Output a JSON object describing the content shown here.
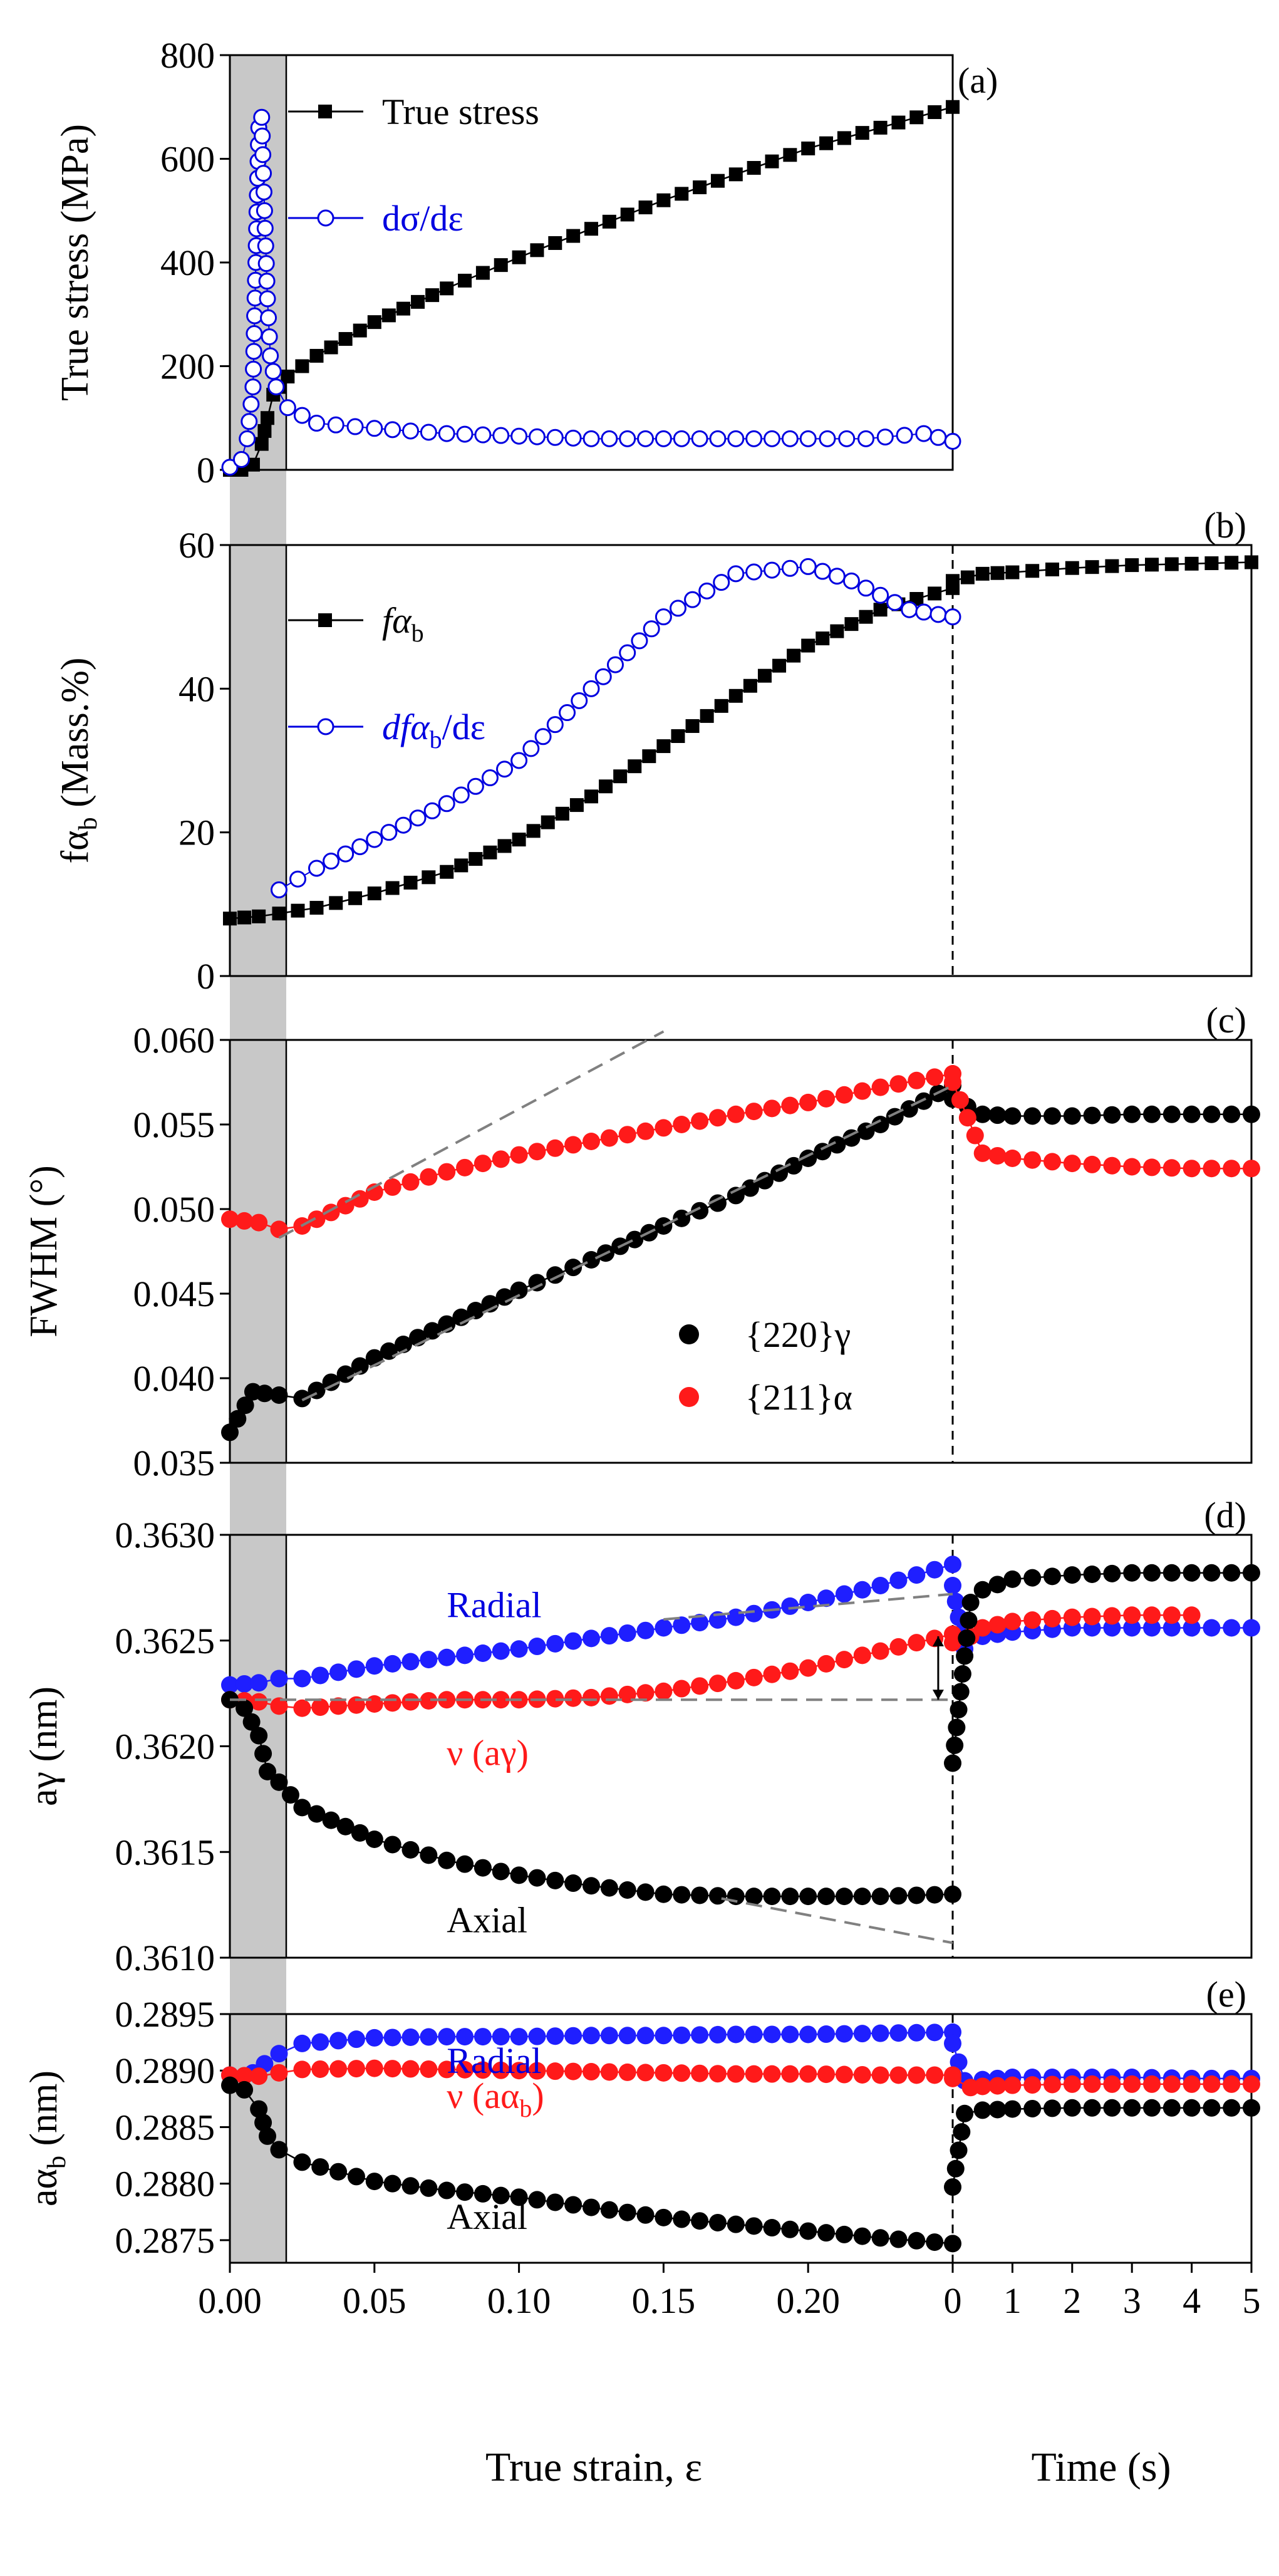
{
  "figure": {
    "x_label": "True strain, ε",
    "time_label": "Time (s)",
    "strain_ticks": [
      "0.00",
      "0.05",
      "0.10",
      "0.15",
      "0.20"
    ],
    "time_ticks": [
      "0",
      "1",
      "2",
      "3",
      "4",
      "5"
    ]
  },
  "colors": {
    "black": "#000000",
    "blue": "#1f1fff",
    "red": "#ff1a1a",
    "dashed": "#808080",
    "shade": "#c8c8c8",
    "hollow_blue": "#0000e0"
  },
  "chart_data": [
    {
      "type": "line",
      "panel_label": "(a)",
      "ylabel": "True stress (MPa)",
      "ylim": [
        0,
        800
      ],
      "yticks": [
        "0",
        "200",
        "400",
        "600",
        "800"
      ],
      "xlim_strain": [
        0,
        0.25
      ],
      "legend": [
        {
          "text": "True stress",
          "marker": "filled-square",
          "color": "#000000"
        },
        {
          "text": "dσ/dε",
          "marker": "open-circle",
          "color": "#0000e0"
        }
      ],
      "series": [
        {
          "name": "True stress",
          "segment": "strain",
          "x": [
            0.0,
            0.004,
            0.008,
            0.011,
            0.013,
            0.015,
            0.017,
            0.02,
            0.03,
            0.05,
            0.075,
            0.1,
            0.125,
            0.15,
            0.175,
            0.2,
            0.225,
            0.25
          ],
          "y": [
            0,
            0,
            10,
            50,
            100,
            145,
            160,
            180,
            220,
            285,
            350,
            410,
            465,
            520,
            570,
            620,
            660,
            700
          ]
        },
        {
          "name": "dσ/dε",
          "segment": "strain",
          "x": [
            0.0,
            0.004,
            0.006,
            0.008,
            0.009,
            0.01,
            0.011,
            0.012,
            0.013,
            0.014,
            0.016,
            0.02,
            0.03,
            0.05,
            0.075,
            0.1,
            0.125,
            0.15,
            0.175,
            0.2,
            0.22,
            0.24,
            0.25
          ],
          "y": [
            5,
            20,
            60,
            160,
            400,
            660,
            680,
            500,
            330,
            220,
            160,
            120,
            90,
            80,
            70,
            65,
            60,
            60,
            60,
            60,
            60,
            70,
            55
          ]
        }
      ]
    },
    {
      "type": "line",
      "panel_label": "(b)",
      "ylabel": "fα_b (Mass.%)",
      "ylim": [
        0,
        60
      ],
      "yticks": [
        "0",
        "20",
        "40",
        "60"
      ],
      "xlim_strain": [
        0,
        0.25
      ],
      "xlim_time": [
        0,
        5
      ],
      "legend": [
        {
          "text": "fα",
          "sub": "b",
          "marker": "filled-square",
          "color": "#000000"
        },
        {
          "text": "dfα",
          "sub": "b",
          "suffix": "/dε",
          "marker": "open-circle",
          "color": "#0000e0"
        }
      ],
      "series": [
        {
          "name": "fα_b",
          "segment": "strain",
          "x": [
            0.0,
            0.01,
            0.017,
            0.03,
            0.05,
            0.075,
            0.1,
            0.125,
            0.15,
            0.175,
            0.2,
            0.225,
            0.25
          ],
          "y": [
            8,
            8.3,
            8.7,
            9.5,
            11.5,
            14.5,
            19,
            25,
            32,
            39,
            46,
            51,
            54
          ]
        },
        {
          "name": "fα_b",
          "segment": "time",
          "x": [
            0,
            0.5,
            1,
            2,
            3,
            4,
            5
          ],
          "y": [
            55,
            56,
            56.2,
            56.8,
            57.2,
            57.4,
            57.6
          ]
        },
        {
          "name": "dfα_b/dε",
          "segment": "strain",
          "x": [
            0.017,
            0.03,
            0.05,
            0.075,
            0.1,
            0.125,
            0.15,
            0.175,
            0.2,
            0.215,
            0.225,
            0.235,
            0.25
          ],
          "y": [
            12,
            15,
            19,
            24,
            30,
            40,
            50,
            56,
            57,
            55,
            53,
            51,
            50
          ]
        }
      ]
    },
    {
      "type": "scatter",
      "panel_label": "(c)",
      "ylabel": "FWHM (°)",
      "ylim": [
        0.035,
        0.06
      ],
      "yticks": [
        "0.035",
        "0.040",
        "0.045",
        "0.050",
        "0.055",
        "0.060"
      ],
      "xlim_strain": [
        0,
        0.25
      ],
      "xlim_time": [
        0,
        5
      ],
      "legend": [
        {
          "text": "{220}γ",
          "marker": "filled-circle",
          "color": "#000000"
        },
        {
          "text": "{211}α",
          "marker": "filled-circle",
          "color": "#ff1a1a"
        }
      ],
      "series": [
        {
          "name": "{220}γ",
          "segment": "strain",
          "x": [
            0.0,
            0.008,
            0.012,
            0.017,
            0.025,
            0.05,
            0.075,
            0.1,
            0.125,
            0.15,
            0.175,
            0.2,
            0.225,
            0.25
          ],
          "y": [
            0.0368,
            0.0392,
            0.0391,
            0.039,
            0.0388,
            0.0412,
            0.0432,
            0.0452,
            0.047,
            0.049,
            0.0508,
            0.053,
            0.055,
            0.0573
          ]
        },
        {
          "name": "{220}γ",
          "segment": "time",
          "x": [
            0,
            0.5,
            1,
            2,
            3,
            4,
            5
          ],
          "y": [
            0.0565,
            0.0556,
            0.0555,
            0.0555,
            0.0556,
            0.0556,
            0.0556
          ]
        },
        {
          "name": "{211}α",
          "segment": "strain",
          "x": [
            0.0,
            0.01,
            0.017,
            0.025,
            0.05,
            0.075,
            0.1,
            0.125,
            0.15,
            0.175,
            0.2,
            0.225,
            0.25
          ],
          "y": [
            0.0494,
            0.0492,
            0.0488,
            0.049,
            0.051,
            0.0522,
            0.0532,
            0.054,
            0.0548,
            0.0556,
            0.0563,
            0.0572,
            0.058
          ]
        },
        {
          "name": "{211}α",
          "segment": "time",
          "x": [
            0,
            0.5,
            1,
            2,
            3,
            4,
            5
          ],
          "y": [
            0.0575,
            0.0533,
            0.053,
            0.0527,
            0.0525,
            0.0524,
            0.0524
          ]
        },
        {
          "name": "trend",
          "segment": "strain",
          "style": "dashed",
          "x": [
            0.017,
            0.15
          ],
          "y": [
            0.0483,
            0.0605
          ]
        },
        {
          "name": "trend",
          "segment": "strain",
          "style": "dashed",
          "x": [
            0.025,
            0.25
          ],
          "y": [
            0.0387,
            0.0573
          ]
        }
      ]
    },
    {
      "type": "scatter",
      "panel_label": "(d)",
      "ylabel": "aγ (nm)",
      "ylim": [
        0.361,
        0.363
      ],
      "yticks": [
        "0.3610",
        "0.3615",
        "0.3620",
        "0.3625",
        "0.3630"
      ],
      "xlim_strain": [
        0,
        0.25
      ],
      "xlim_time": [
        0,
        5
      ],
      "annotations": [
        {
          "text": "Radial",
          "color": "#0000e0",
          "x": 0.075,
          "y": 0.36267
        },
        {
          "text": "ν (aγ)",
          "color": "#ff1a1a",
          "x": 0.075,
          "y": 0.36197
        },
        {
          "text": "Axial",
          "color": "#000000",
          "x": 0.075,
          "y": 0.36118
        }
      ],
      "series": [
        {
          "name": "Radial",
          "color": "blue",
          "segment": "strain",
          "x": [
            0.0,
            0.01,
            0.017,
            0.025,
            0.05,
            0.075,
            0.1,
            0.125,
            0.15,
            0.175,
            0.2,
            0.225,
            0.25
          ],
          "y": [
            0.36229,
            0.3623,
            0.36232,
            0.36232,
            0.36238,
            0.36242,
            0.36246,
            0.36251,
            0.36256,
            0.36261,
            0.36268,
            0.36276,
            0.36286
          ]
        },
        {
          "name": "Radial",
          "color": "blue",
          "segment": "time",
          "x": [
            0,
            0.2,
            0.5,
            1,
            2,
            3,
            4,
            5
          ],
          "y": [
            0.36276,
            0.36246,
            0.36252,
            0.36254,
            0.36256,
            0.36256,
            0.36256,
            0.36256
          ]
        },
        {
          "name": "ν (aγ)",
          "color": "red",
          "segment": "strain",
          "x": [
            0.0,
            0.01,
            0.017,
            0.025,
            0.05,
            0.075,
            0.1,
            0.125,
            0.15,
            0.175,
            0.2,
            0.225,
            0.25
          ],
          "y": [
            0.36222,
            0.36221,
            0.36219,
            0.36218,
            0.3622,
            0.36222,
            0.36222,
            0.36223,
            0.36226,
            0.36231,
            0.36237,
            0.36245,
            0.36253
          ]
        },
        {
          "name": "ν (aγ)",
          "color": "red",
          "segment": "time",
          "x": [
            0,
            0.3,
            0.5,
            1,
            2,
            3,
            4
          ],
          "y": [
            0.36249,
            0.36252,
            0.36256,
            0.36259,
            0.36261,
            0.36262,
            0.36262
          ]
        },
        {
          "name": "Axial",
          "color": "black",
          "segment": "strain",
          "x": [
            0.0,
            0.005,
            0.01,
            0.013,
            0.017,
            0.025,
            0.05,
            0.075,
            0.1,
            0.125,
            0.15,
            0.175,
            0.2,
            0.225,
            0.25
          ],
          "y": [
            0.36222,
            0.36218,
            0.36205,
            0.36188,
            0.36183,
            0.36171,
            0.36156,
            0.36146,
            0.36139,
            0.36134,
            0.3613,
            0.36129,
            0.36129,
            0.36129,
            0.3613
          ]
        },
        {
          "name": "Axial",
          "color": "black",
          "segment": "time",
          "x": [
            0,
            0.3,
            0.5,
            1,
            2,
            3,
            4,
            5
          ],
          "y": [
            0.36192,
            0.36268,
            0.36274,
            0.36279,
            0.36281,
            0.36282,
            0.36282,
            0.36282
          ]
        },
        {
          "name": "guide",
          "segment": "strain",
          "style": "dashed",
          "x": [
            0.0,
            0.25
          ],
          "y": [
            0.36222,
            0.36222
          ]
        },
        {
          "name": "guide",
          "segment": "strain",
          "style": "dashed",
          "x": [
            0.15,
            0.25
          ],
          "y": [
            0.3626,
            0.36272
          ]
        },
        {
          "name": "guide",
          "segment": "strain",
          "style": "dashed",
          "x": [
            0.17,
            0.25
          ],
          "y": [
            0.36128,
            0.36107
          ]
        },
        {
          "name": "arrow",
          "segment": "strain",
          "style": "double-arrow",
          "x": [
            0.245,
            0.245
          ],
          "y": [
            0.36222,
            0.36252
          ]
        }
      ]
    },
    {
      "type": "scatter",
      "panel_label": "(e)",
      "ylabel": "aα_b (nm)",
      "ylim": [
        0.2873,
        0.2895
      ],
      "yticks": [
        "0.2875",
        "0.2880",
        "0.2885",
        "0.2890",
        "0.2895"
      ],
      "xlim_strain": [
        0,
        0.25
      ],
      "xlim_time": [
        0,
        5
      ],
      "annotations": [
        {
          "text": "Radial",
          "color": "#0000e0",
          "x": 0.075,
          "y": 0.28909
        },
        {
          "text": "ν (aα",
          "sub": "b",
          "suffix": ")",
          "color": "#ff1a1a",
          "x": 0.075,
          "y": 0.28878
        },
        {
          "text": "Axial",
          "color": "#000000",
          "x": 0.075,
          "y": 0.28771
        }
      ],
      "series": [
        {
          "name": "Radial",
          "color": "blue",
          "segment": "strain",
          "x": [
            0.0,
            0.008,
            0.012,
            0.017,
            0.025,
            0.05,
            0.075,
            0.1,
            0.125,
            0.15,
            0.175,
            0.2,
            0.225,
            0.25
          ],
          "y": [
            0.28896,
            0.28898,
            0.28906,
            0.28915,
            0.28924,
            0.28929,
            0.2893,
            0.2893,
            0.28931,
            0.28931,
            0.28932,
            0.28932,
            0.28933,
            0.28934
          ]
        },
        {
          "name": "Radial",
          "color": "blue",
          "segment": "time",
          "x": [
            0,
            0.2,
            0.5,
            1,
            2,
            3,
            4,
            5
          ],
          "y": [
            0.28924,
            0.28891,
            0.28892,
            0.28894,
            0.28894,
            0.28894,
            0.28893,
            0.28893
          ]
        },
        {
          "name": "ν (aα_b)",
          "color": "red",
          "segment": "strain",
          "x": [
            0.0,
            0.01,
            0.017,
            0.025,
            0.05,
            0.075,
            0.1,
            0.125,
            0.15,
            0.175,
            0.2,
            0.225,
            0.25
          ],
          "y": [
            0.28896,
            0.28895,
            0.28898,
            0.28901,
            0.28902,
            0.28901,
            0.289,
            0.28899,
            0.28898,
            0.28897,
            0.28897,
            0.28896,
            0.28896
          ]
        },
        {
          "name": "ν (aα_b)",
          "color": "red",
          "segment": "time",
          "x": [
            0,
            0.3,
            0.5,
            1,
            2,
            3,
            4,
            5
          ],
          "y": [
            0.28893,
            0.28885,
            0.28886,
            0.28887,
            0.28888,
            0.28888,
            0.28888,
            0.28888
          ]
        },
        {
          "name": "Axial",
          "color": "black",
          "segment": "strain",
          "x": [
            0.0,
            0.005,
            0.01,
            0.013,
            0.017,
            0.025,
            0.05,
            0.075,
            0.1,
            0.125,
            0.15,
            0.175,
            0.2,
            0.225,
            0.25
          ],
          "y": [
            0.28887,
            0.28883,
            0.28866,
            0.28842,
            0.2883,
            0.28819,
            0.28802,
            0.28794,
            0.28788,
            0.28779,
            0.2877,
            0.28764,
            0.28758,
            0.28752,
            0.28747
          ]
        },
        {
          "name": "Axial",
          "color": "black",
          "segment": "time",
          "x": [
            0,
            0.2,
            0.5,
            1,
            2,
            3,
            4,
            5
          ],
          "y": [
            0.28797,
            0.28862,
            0.28865,
            0.28866,
            0.28867,
            0.28867,
            0.28867,
            0.28867
          ]
        }
      ]
    }
  ]
}
